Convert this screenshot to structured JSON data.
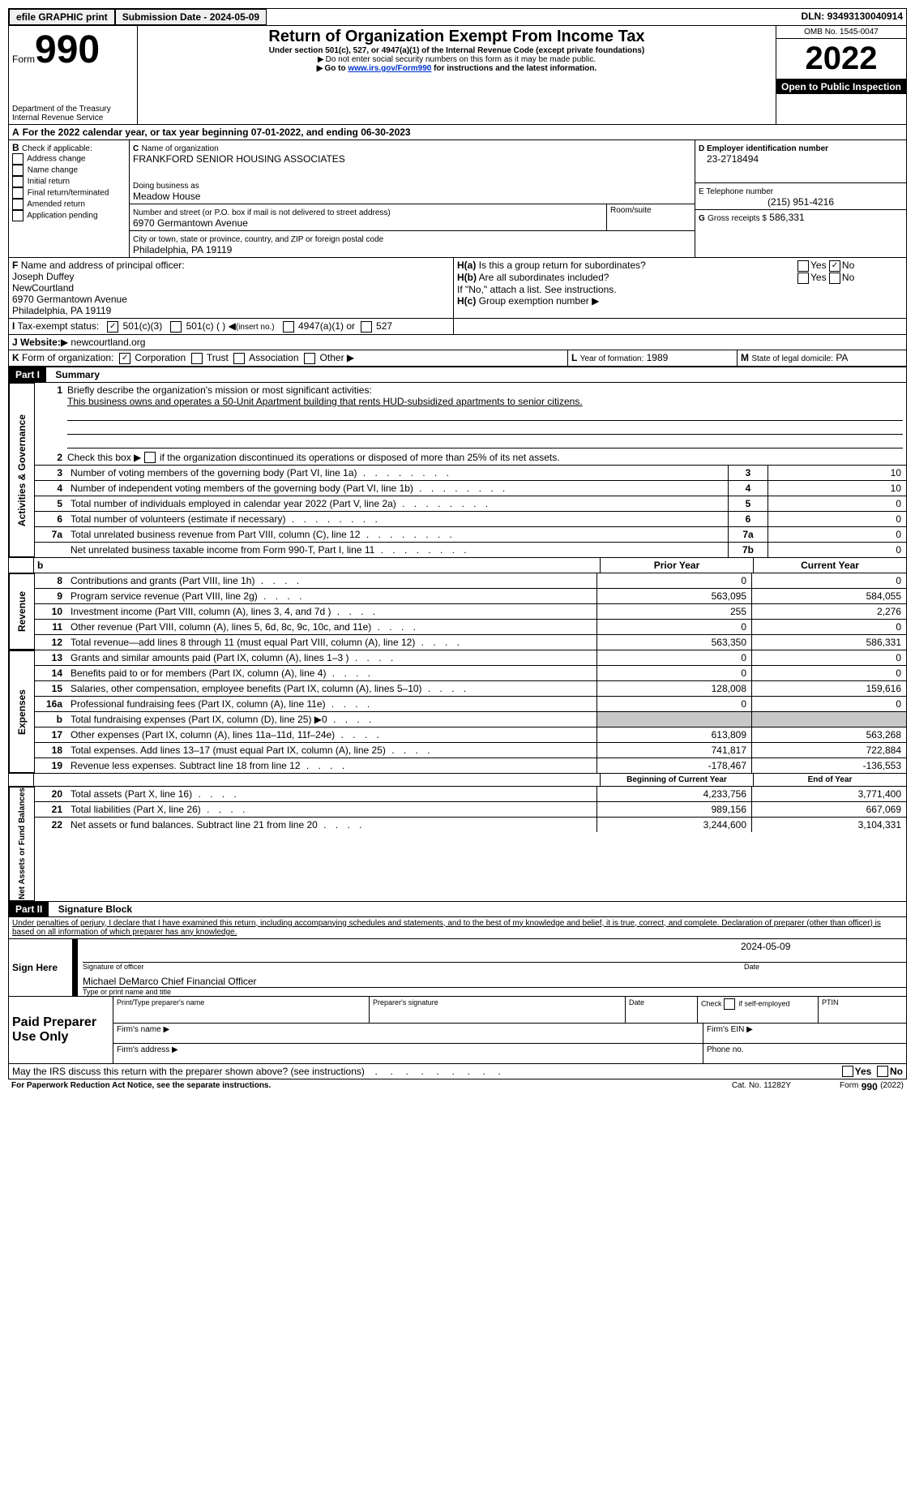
{
  "topbar": {
    "efile_label": "efile GRAPHIC print",
    "submission_label": "Submission Date -",
    "submission_date": "2024-05-09",
    "dln_label": "DLN:",
    "dln_value": "93493130040914"
  },
  "header": {
    "form_label": "Form",
    "form_number": "990",
    "title": "Return of Organization Exempt From Income Tax",
    "subtitle": "Under section 501(c), 527, or 4947(a)(1) of the Internal Revenue Code (except private foundations)",
    "note1": "Do not enter social security numbers on this form as it may be made public.",
    "note2_prefix": "Go to",
    "note2_link": "www.irs.gov/Form990",
    "note2_suffix": "for instructions and the latest information.",
    "omb": "OMB No. 1545-0047",
    "year": "2022",
    "inspection": "Open to Public Inspection",
    "dept1": "Department of the Treasury",
    "dept2": "Internal Revenue Service"
  },
  "section_a": {
    "a_label": "A",
    "line": "For the 2022 calendar year, or tax year beginning",
    "begin": "07-01-2022",
    "mid": ", and ending",
    "end": "06-30-2023"
  },
  "section_b": {
    "label": "B",
    "check_label": "Check if applicable:",
    "items": [
      "Address change",
      "Name change",
      "Initial return",
      "Final return/terminated",
      "Amended return",
      "Application pending"
    ]
  },
  "section_c": {
    "label": "C",
    "name_label": "Name of organization",
    "org_name": "FRANKFORD SENIOR HOUSING ASSOCIATES",
    "dba_label": "Doing business as",
    "dba": "Meadow House",
    "street_label": "Number and street (or P.O. box if mail is not delivered to street address)",
    "room_label": "Room/suite",
    "street": "6970 Germantown Avenue",
    "city_label": "City or town, state or province, country, and ZIP or foreign postal code",
    "city": "Philadelphia, PA  19119"
  },
  "section_d": {
    "label": "D Employer identification number",
    "value": "23-2718494"
  },
  "section_e": {
    "label": "E Telephone number",
    "value": "(215) 951-4216"
  },
  "section_g": {
    "label": "G",
    "text": "Gross receipts $",
    "value": "586,331"
  },
  "section_f": {
    "label": "F",
    "text": "Name and address of principal officer:",
    "officer": "Joseph Duffey",
    "org": "NewCourtland",
    "street": "6970 Germantown Avenue",
    "city": "Philadelphia, PA  19119"
  },
  "section_h": {
    "ha_label": "H(a)",
    "ha_text": "Is this a group return for subordinates?",
    "hb_label": "H(b)",
    "hb_text": "Are all subordinates included?",
    "hb_note": "If \"No,\" attach a list. See instructions.",
    "hc_label": "H(c)",
    "hc_text": "Group exemption number",
    "yes": "Yes",
    "no": "No"
  },
  "section_i": {
    "label": "I",
    "text": "Tax-exempt status:",
    "opt1": "501(c)(3)",
    "opt2": "501(c) (  )",
    "opt2_note": "(insert no.)",
    "opt3": "4947(a)(1) or",
    "opt4": "527"
  },
  "section_j": {
    "label": "J",
    "text": "Website:",
    "value": "newcourtland.org"
  },
  "section_k": {
    "label": "K",
    "text": "Form of organization:",
    "opts": [
      "Corporation",
      "Trust",
      "Association",
      "Other"
    ]
  },
  "section_l": {
    "label": "L",
    "text": "Year of formation:",
    "value": "1989"
  },
  "section_m": {
    "label": "M",
    "text": "State of legal domicile:",
    "value": "PA"
  },
  "part1": {
    "header": "Part I",
    "title": "Summary",
    "line1": "Briefly describe the organization's mission or most significant activities:",
    "mission": "This business owns and operates a 50-Unit Apartment building that rents HUD-subsidized apartments to senior citizens.",
    "line2": "Check this box ▶     if the organization discontinued its operations or disposed of more than 25% of its net assets.",
    "rows_gov": [
      {
        "n": "3",
        "txt": "Number of voting members of the governing body (Part VI, line 1a)",
        "box": "3",
        "val": "10"
      },
      {
        "n": "4",
        "txt": "Number of independent voting members of the governing body (Part VI, line 1b)",
        "box": "4",
        "val": "10"
      },
      {
        "n": "5",
        "txt": "Total number of individuals employed in calendar year 2022 (Part V, line 2a)",
        "box": "5",
        "val": "0"
      },
      {
        "n": "6",
        "txt": "Total number of volunteers (estimate if necessary)",
        "box": "6",
        "val": "0"
      },
      {
        "n": "7a",
        "txt": "Total unrelated business revenue from Part VIII, column (C), line 12",
        "box": "7a",
        "val": "0"
      },
      {
        "n": "",
        "txt": "Net unrelated business taxable income from Form 990-T, Part I, line 11",
        "box": "7b",
        "val": "0"
      }
    ],
    "col_prior": "Prior Year",
    "col_current": "Current Year",
    "rows_rev": [
      {
        "n": "8",
        "txt": "Contributions and grants (Part VIII, line 1h)",
        "p": "0",
        "c": "0"
      },
      {
        "n": "9",
        "txt": "Program service revenue (Part VIII, line 2g)",
        "p": "563,095",
        "c": "584,055"
      },
      {
        "n": "10",
        "txt": "Investment income (Part VIII, column (A), lines 3, 4, and 7d )",
        "p": "255",
        "c": "2,276"
      },
      {
        "n": "11",
        "txt": "Other revenue (Part VIII, column (A), lines 5, 6d, 8c, 9c, 10c, and 11e)",
        "p": "0",
        "c": "0"
      },
      {
        "n": "12",
        "txt": "Total revenue—add lines 8 through 11 (must equal Part VIII, column (A), line 12)",
        "p": "563,350",
        "c": "586,331"
      }
    ],
    "rows_exp": [
      {
        "n": "13",
        "txt": "Grants and similar amounts paid (Part IX, column (A), lines 1–3 )",
        "p": "0",
        "c": "0"
      },
      {
        "n": "14",
        "txt": "Benefits paid to or for members (Part IX, column (A), line 4)",
        "p": "0",
        "c": "0"
      },
      {
        "n": "15",
        "txt": "Salaries, other compensation, employee benefits (Part IX, column (A), lines 5–10)",
        "p": "128,008",
        "c": "159,616"
      },
      {
        "n": "16a",
        "txt": "Professional fundraising fees (Part IX, column (A), line 11e)",
        "p": "0",
        "c": "0"
      },
      {
        "n": "b",
        "txt": "Total fundraising expenses (Part IX, column (D), line 25) ▶0",
        "p": "",
        "c": "",
        "grey": true
      },
      {
        "n": "17",
        "txt": "Other expenses (Part IX, column (A), lines 11a–11d, 11f–24e)",
        "p": "613,809",
        "c": "563,268"
      },
      {
        "n": "18",
        "txt": "Total expenses. Add lines 13–17 (must equal Part IX, column (A), line 25)",
        "p": "741,817",
        "c": "722,884"
      },
      {
        "n": "19",
        "txt": "Revenue less expenses. Subtract line 18 from line 12",
        "p": "-178,467",
        "c": "-136,553"
      }
    ],
    "col_begin": "Beginning of Current Year",
    "col_end": "End of Year",
    "rows_net": [
      {
        "n": "20",
        "txt": "Total assets (Part X, line 16)",
        "p": "4,233,756",
        "c": "3,771,400"
      },
      {
        "n": "21",
        "txt": "Total liabilities (Part X, line 26)",
        "p": "989,156",
        "c": "667,069"
      },
      {
        "n": "22",
        "txt": "Net assets or fund balances. Subtract line 21 from line 20",
        "p": "3,244,600",
        "c": "3,104,331"
      }
    ],
    "vlabel_gov": "Activities & Governance",
    "vlabel_rev": "Revenue",
    "vlabel_exp": "Expenses",
    "vlabel_net": "Net Assets or Fund Balances"
  },
  "part2": {
    "header": "Part II",
    "title": "Signature Block",
    "declaration": "Under penalties of perjury, I declare that I have examined this return, including accompanying schedules and statements, and to the best of my knowledge and belief, it is true, correct, and complete. Declaration of preparer (other than officer) is based on all information of which preparer has any knowledge.",
    "sign_here": "Sign Here",
    "sig_officer": "Signature of officer",
    "sig_date": "2024-05-09",
    "date_label": "Date",
    "officer_name": "Michael DeMarco  Chief Financial Officer",
    "type_name": "Type or print name and title",
    "paid": "Paid Preparer Use Only",
    "prep_name": "Print/Type preparer's name",
    "prep_sig": "Preparer's signature",
    "check_self": "Check         if self-employed",
    "ptin": "PTIN",
    "firm_name": "Firm's name  ▶",
    "firm_ein": "Firm's EIN ▶",
    "firm_addr": "Firm's address ▶",
    "phone": "Phone no.",
    "discuss": "May the IRS discuss this return with the preparer shown above? (see instructions)",
    "yes": "Yes",
    "no": "No"
  },
  "footer": {
    "paperwork": "For Paperwork Reduction Act Notice, see the separate instructions.",
    "cat": "Cat. No. 11282Y",
    "form": "Form",
    "formnum": "990",
    "year": "(2022)"
  }
}
